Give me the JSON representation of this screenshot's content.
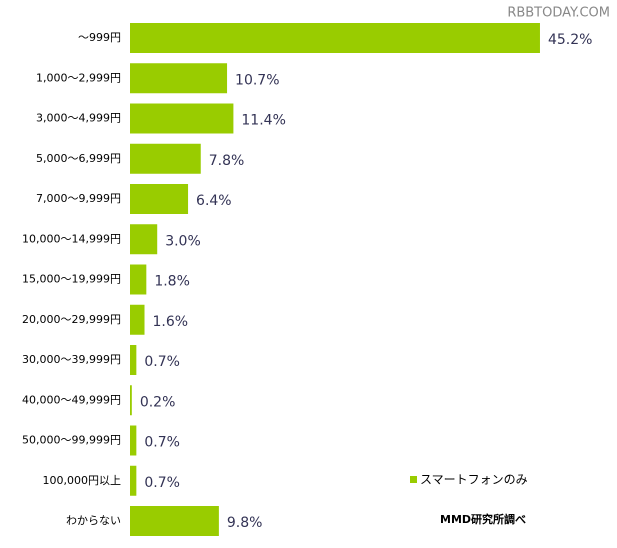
{
  "watermark": "RBBTODAY.COM",
  "chart_data": {
    "type": "hbar",
    "source": "MMD研究所調べ",
    "categories": [
      "～999円",
      "1,000～2,999円",
      "3,000～4,999円",
      "5,000～6,999円",
      "7,000～9,999円",
      "10,000～14,999円",
      "15,000～19,999円",
      "20,000～29,999円",
      "30,000～39,999円",
      "40,000～49,999円",
      "50,000～99,999円",
      "100,000円以上",
      "わからない"
    ],
    "series": [
      {
        "name": "スマートフォンのみ",
        "color": "#99cc00",
        "values": [
          45.2,
          10.7,
          11.4,
          7.8,
          6.4,
          3.0,
          1.8,
          1.6,
          0.7,
          0.2,
          0.7,
          0.7,
          9.8
        ],
        "value_labels": [
          "45.2%",
          "10.7%",
          "11.4%",
          "7.8%",
          "6.4%",
          "3.0%",
          "1.8%",
          "1.6%",
          "0.7%",
          "0.2%",
          "0.7%",
          "0.7%",
          "9.8%"
        ]
      }
    ]
  }
}
